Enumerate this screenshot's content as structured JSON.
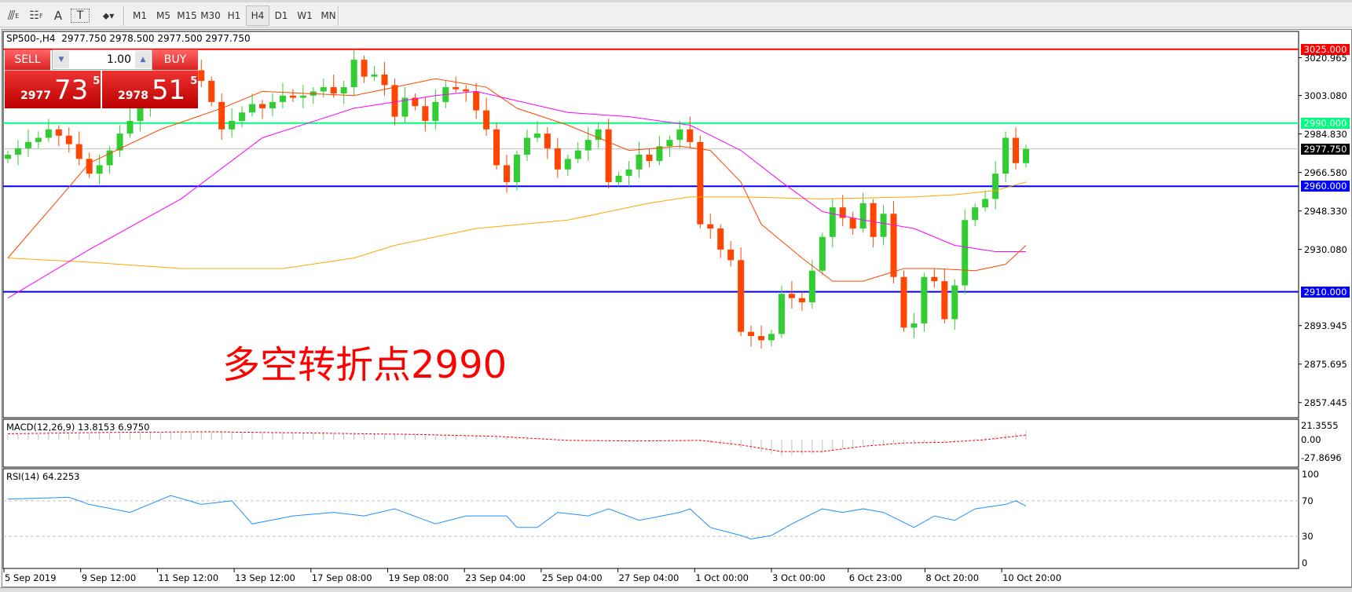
{
  "toolbar": {
    "tools": [
      {
        "icon": "fibonacci-fan-icon",
        "label": "E"
      },
      {
        "icon": "fibonacci-grid-icon",
        "label": "F"
      },
      {
        "icon": "text-icon",
        "label": "A"
      },
      {
        "icon": "text-label-icon",
        "label": "T"
      },
      {
        "icon": "arrows-icon",
        "label": "▾"
      }
    ],
    "timeframes": [
      "M1",
      "M5",
      "M15",
      "M30",
      "H1",
      "H4",
      "D1",
      "W1",
      "MN"
    ],
    "active": "H4"
  },
  "chart": {
    "symbol_line": "SP500-,H4  2977.750 2978.500 2977.500 2977.750",
    "trade": {
      "sell": "SELL",
      "buy": "BUY",
      "lot": "1.00",
      "sell_big": "2977",
      "sell_main": "73",
      "sell_pip": "5",
      "buy_big": "2978",
      "buy_main": "51",
      "buy_pip": "5"
    },
    "annotation": "多空转折点2990",
    "hlines": [
      {
        "price": 3025,
        "label": "3025.000",
        "color": "#ff0000"
      },
      {
        "price": 2990,
        "label": "2990.000",
        "color": "#00ff7f"
      },
      {
        "price": 2960,
        "label": "2960.000",
        "color": "#0000ff"
      },
      {
        "price": 2910,
        "label": "2910.000",
        "color": "#0000ff"
      }
    ],
    "current": {
      "price": 2977.75,
      "label": "2977.750",
      "color": "#000000"
    },
    "price_ticks": [
      "3020.965",
      "3003.080",
      "2984.830",
      "2966.580",
      "2948.330",
      "2930.080",
      "2893.945",
      "2875.695",
      "2857.445"
    ],
    "time_labels": [
      "5 Sep 2019",
      "9 Sep 12:00",
      "11 Sep 12:00",
      "13 Sep 12:00",
      "17 Sep 08:00",
      "19 Sep 08:00",
      "23 Sep 04:00",
      "25 Sep 04:00",
      "27 Sep 04:00",
      "1 Oct 00:00",
      "3 Oct 00:00",
      "6 Oct 23:00",
      "8 Oct 20:00",
      "10 Oct 20:00"
    ],
    "colors": {
      "up": "#32cd32",
      "down": "#ff4500",
      "ma_fast": "#ff4500",
      "ma_mid": "#ff00ff",
      "ma_slow": "#ffa500",
      "rsi": "#1e90ff",
      "macd_signal": "#ff0000",
      "macd_hist": "#c0c0c0"
    },
    "closes": [
      2975,
      2978,
      2981,
      2983,
      2987,
      2984,
      2980,
      2973,
      2966,
      2970,
      2977,
      2985,
      2991,
      2997,
      3003,
      3006,
      3009,
      3012,
      3015,
      3010,
      3000,
      2987,
      2991,
      2995,
      2999,
      2997,
      3000,
      3003,
      3002,
      3003,
      3005,
      3007,
      3004,
      3007,
      3020,
      3012,
      3013,
      3008,
      2993,
      3002,
      2998,
      2991,
      3000,
      3007,
      3006,
      3005,
      2996,
      2987,
      2970,
      2962,
      2975,
      2983,
      2985,
      2978,
      2968,
      2973,
      2977,
      2982,
      2987,
      2962,
      2965,
      2968,
      2975,
      2972,
      2979,
      2982,
      2987,
      2981,
      2942,
      2940,
      2930,
      2925,
      2891,
      2889,
      2887,
      2890,
      2909,
      2907,
      2905,
      2920,
      2936,
      2950,
      2945,
      2940,
      2952,
      2936,
      2947,
      2917,
      2893,
      2895,
      2917,
      2915,
      2897,
      2913,
      2944,
      2950,
      2954,
      2966,
      2983,
      2971,
      2977.75
    ],
    "ma_fast": [
      [
        0,
        2926
      ],
      [
        5,
        2954
      ],
      [
        8,
        2971
      ],
      [
        15,
        2987
      ],
      [
        21,
        2997
      ],
      [
        25,
        3005
      ],
      [
        34,
        3003
      ],
      [
        42,
        3011
      ],
      [
        47,
        3007
      ],
      [
        50,
        2997
      ],
      [
        55,
        2989
      ],
      [
        61,
        2977
      ],
      [
        66,
        2979
      ],
      [
        69,
        2977
      ],
      [
        72,
        2962
      ],
      [
        74,
        2942
      ],
      [
        78,
        2926
      ],
      [
        81,
        2915
      ],
      [
        84,
        2915
      ],
      [
        88,
        2921
      ],
      [
        91,
        2921
      ],
      [
        95,
        2920
      ],
      [
        98,
        2923
      ],
      [
        100,
        2932
      ]
    ],
    "ma_mid": [
      [
        0,
        2907
      ],
      [
        8,
        2930
      ],
      [
        17,
        2954
      ],
      [
        25,
        2983
      ],
      [
        34,
        2997
      ],
      [
        42,
        3003
      ],
      [
        46,
        3005
      ],
      [
        55,
        2995
      ],
      [
        61,
        2993
      ],
      [
        67,
        2989
      ],
      [
        72,
        2977
      ],
      [
        76,
        2962
      ],
      [
        80,
        2948
      ],
      [
        84,
        2944
      ],
      [
        89,
        2940
      ],
      [
        93,
        2932
      ],
      [
        97,
        2929
      ],
      [
        100,
        2929
      ]
    ],
    "ma_slow": [
      [
        0,
        2926
      ],
      [
        8,
        2924
      ],
      [
        17,
        2921
      ],
      [
        27,
        2921
      ],
      [
        34,
        2926
      ],
      [
        38,
        2932
      ],
      [
        46,
        2940
      ],
      [
        55,
        2944
      ],
      [
        63,
        2952
      ],
      [
        67,
        2955
      ],
      [
        72,
        2955
      ],
      [
        80,
        2954
      ],
      [
        89,
        2955
      ],
      [
        93,
        2956
      ],
      [
        97,
        2958
      ],
      [
        100,
        2962
      ]
    ]
  },
  "macd": {
    "label": "MACD(12,26,9) 13.8153 6.9750",
    "ticks": [
      "21.3555",
      "0.00",
      "-27.8696"
    ],
    "hist": [
      [
        0,
        8
      ],
      [
        10,
        10
      ],
      [
        20,
        12
      ],
      [
        30,
        11
      ],
      [
        40,
        9
      ],
      [
        48,
        5
      ],
      [
        55,
        -2
      ],
      [
        62,
        -3
      ],
      [
        68,
        -3
      ],
      [
        72,
        -12
      ],
      [
        76,
        -25
      ],
      [
        80,
        -20
      ],
      [
        84,
        -8
      ],
      [
        88,
        -4
      ],
      [
        92,
        -4
      ],
      [
        96,
        3
      ],
      [
        100,
        13.8
      ]
    ],
    "signal": [
      [
        0,
        9
      ],
      [
        10,
        11
      ],
      [
        20,
        12
      ],
      [
        30,
        10
      ],
      [
        40,
        8
      ],
      [
        48,
        5
      ],
      [
        55,
        -1
      ],
      [
        62,
        -2
      ],
      [
        68,
        -1
      ],
      [
        72,
        -8
      ],
      [
        76,
        -18
      ],
      [
        80,
        -18
      ],
      [
        84,
        -10
      ],
      [
        88,
        -5
      ],
      [
        92,
        -4
      ],
      [
        96,
        0
      ],
      [
        100,
        7
      ]
    ]
  },
  "rsi": {
    "label": "RSI(14) 64.2253",
    "ticks": [
      "100",
      "70",
      "30",
      "0"
    ],
    "values": [
      [
        0,
        72
      ],
      [
        6,
        74
      ],
      [
        8,
        66
      ],
      [
        12,
        57
      ],
      [
        16,
        76
      ],
      [
        19,
        66
      ],
      [
        22,
        70
      ],
      [
        24,
        44
      ],
      [
        28,
        53
      ],
      [
        32,
        57
      ],
      [
        35,
        53
      ],
      [
        38,
        61
      ],
      [
        42,
        44
      ],
      [
        45,
        53
      ],
      [
        49,
        53
      ],
      [
        50,
        40
      ],
      [
        52,
        40
      ],
      [
        54,
        57
      ],
      [
        57,
        53
      ],
      [
        59,
        61
      ],
      [
        62,
        48
      ],
      [
        66,
        57
      ],
      [
        67,
        61
      ],
      [
        69,
        40
      ],
      [
        72,
        31
      ],
      [
        73,
        27
      ],
      [
        75,
        31
      ],
      [
        77,
        44
      ],
      [
        80,
        61
      ],
      [
        82,
        57
      ],
      [
        84,
        61
      ],
      [
        86,
        57
      ],
      [
        89,
        40
      ],
      [
        91,
        53
      ],
      [
        93,
        48
      ],
      [
        95,
        61
      ],
      [
        98,
        66
      ],
      [
        99,
        70
      ],
      [
        100,
        64.2
      ]
    ]
  }
}
